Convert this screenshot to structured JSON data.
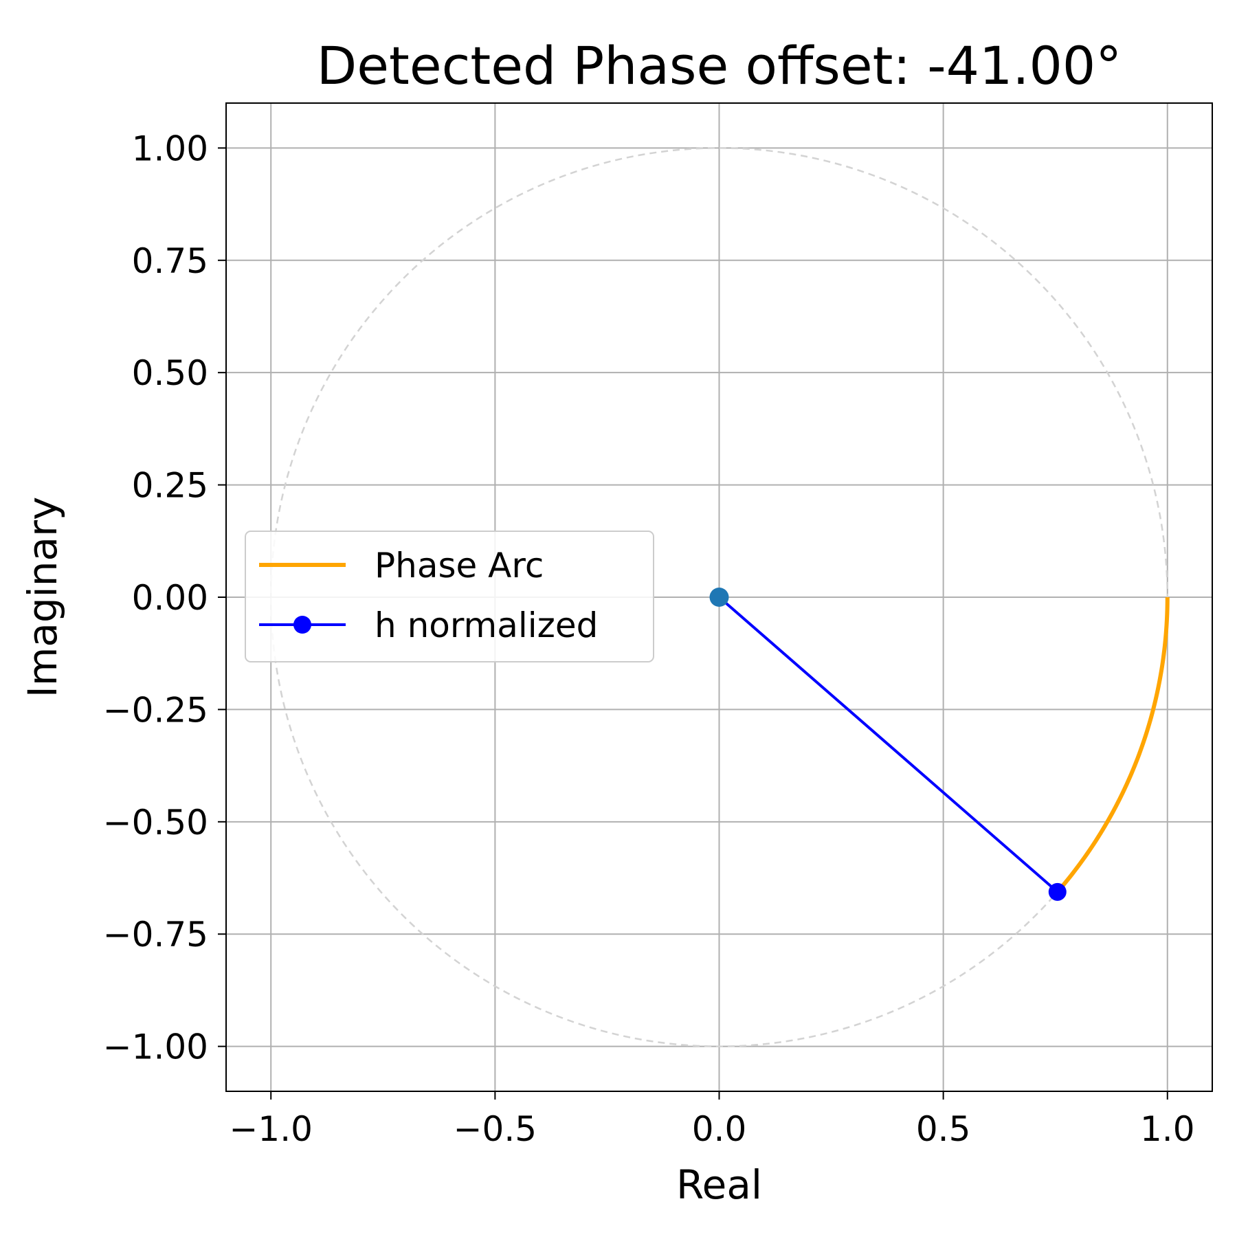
{
  "chart_data": {
    "type": "line",
    "title": "Detected Phase offset: -41.00°",
    "xlabel": "Real",
    "ylabel": "Imaginary",
    "xlim": [
      -1.1,
      1.1
    ],
    "ylim": [
      -1.1,
      1.1
    ],
    "grid": true,
    "legend_position": "center-left",
    "x_ticks": [
      -1.0,
      -0.5,
      0.0,
      0.5,
      1.0
    ],
    "x_tick_labels": [
      "−1.0",
      "−0.5",
      "0.0",
      "0.5",
      "1.0"
    ],
    "y_ticks": [
      1.0,
      0.75,
      0.5,
      0.25,
      0.0,
      -0.25,
      -0.5,
      -0.75,
      -1.0
    ],
    "y_tick_labels": [
      "1.00",
      "0.75",
      "0.50",
      "0.25",
      "0.00",
      "−0.25",
      "−0.50",
      "−0.75",
      "−1.00"
    ],
    "phase_deg": -41.0,
    "unit_circle": {
      "radius": 1.0,
      "style": "dashed",
      "color": "#d3d3d3"
    },
    "series": [
      {
        "name": "Phase Arc",
        "kind": "arc",
        "color": "#ffa500",
        "start_deg": 0,
        "end_deg": -41.0,
        "radius": 1.0
      },
      {
        "name": "h normalized",
        "kind": "line-marker",
        "color": "#0000ff",
        "x": [
          0.0,
          0.7547
        ],
        "y": [
          0.0,
          -0.6561
        ]
      }
    ],
    "points": [
      {
        "x": 0.0,
        "y": 0.0,
        "color": "#1f77b4"
      }
    ]
  }
}
